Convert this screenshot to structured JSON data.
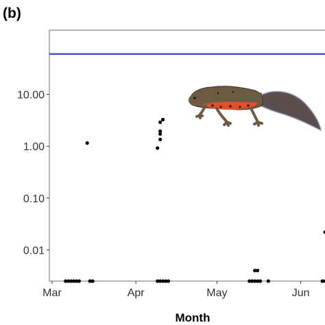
{
  "panel_label": "(b)",
  "colors": {
    "threshold_line": "#3b3bd6",
    "points": "#000000",
    "frame": "#6e6e6e",
    "newt_body": "#6d5a42",
    "newt_belly": "#e0502a",
    "newt_spots": "#2a2118",
    "newt_tail_edge": "#9a8fb6"
  },
  "illustration": {
    "name": "newt-illustration",
    "depicts": "crested newt with orange-spotted belly"
  },
  "chart_data": {
    "type": "scatter",
    "title": "",
    "xlabel": "Month",
    "ylabel": "",
    "y_scale": "log10",
    "x_tick_labels": [
      "Mar",
      "Apr",
      "May",
      "Jun"
    ],
    "x_tick_dates": [
      "03-01",
      "04-01",
      "05-01",
      "06-01"
    ],
    "x_range": [
      "02-28",
      "06-12"
    ],
    "y_tick_labels": [
      "0.01",
      "0.10",
      "1.00",
      "10.00"
    ],
    "y_ticks": [
      0.01,
      0.1,
      1,
      10
    ],
    "ylim": [
      0.0025,
      120
    ],
    "grid": false,
    "legend": "none",
    "threshold_line": {
      "y": 60,
      "label": ""
    },
    "points": [
      {
        "date": "03-06",
        "value": 0.0025
      },
      {
        "date": "03-07",
        "value": 0.0025
      },
      {
        "date": "03-08",
        "value": 0.0025
      },
      {
        "date": "03-09",
        "value": 0.0025
      },
      {
        "date": "03-10",
        "value": 0.0025
      },
      {
        "date": "03-11",
        "value": 0.0025
      },
      {
        "date": "03-14",
        "value": 1.15
      },
      {
        "date": "03-15",
        "value": 0.0025
      },
      {
        "date": "03-16",
        "value": 0.0025
      },
      {
        "date": "04-09",
        "value": 0.0025
      },
      {
        "date": "04-09",
        "value": 0.92
      },
      {
        "date": "04-10",
        "value": 0.0025
      },
      {
        "date": "04-10",
        "value": 1.35
      },
      {
        "date": "04-10",
        "value": 1.72
      },
      {
        "date": "04-10",
        "value": 1.95
      },
      {
        "date": "04-10",
        "value": 2.9
      },
      {
        "date": "04-11",
        "value": 0.0025
      },
      {
        "date": "04-11",
        "value": 3.25
      },
      {
        "date": "04-12",
        "value": 0.0025
      },
      {
        "date": "04-13",
        "value": 0.0025
      },
      {
        "date": "05-13",
        "value": 0.0025
      },
      {
        "date": "05-14",
        "value": 0.0025
      },
      {
        "date": "05-15",
        "value": 0.004
      },
      {
        "date": "05-15",
        "value": 0.0025
      },
      {
        "date": "05-16",
        "value": 0.004
      },
      {
        "date": "05-16",
        "value": 0.0025
      },
      {
        "date": "05-17",
        "value": 0.0025
      },
      {
        "date": "05-20",
        "value": 0.0025
      },
      {
        "date": "06-09",
        "value": 0.0025
      },
      {
        "date": "06-10",
        "value": 0.022
      },
      {
        "date": "06-10",
        "value": 0.0025
      },
      {
        "date": "06-11",
        "value": 0.004
      },
      {
        "date": "06-11",
        "value": 0.0025
      }
    ]
  }
}
